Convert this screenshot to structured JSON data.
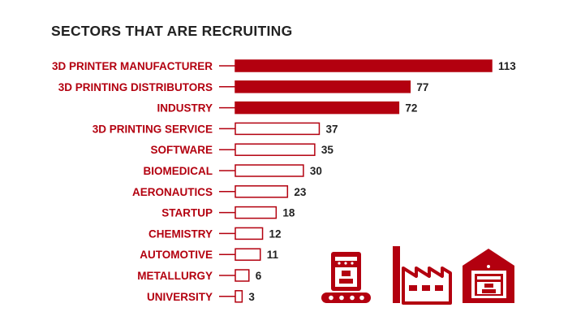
{
  "colors": {
    "accent": "#b3000f",
    "text": "#222222",
    "background": "#ffffff"
  },
  "icons": [
    "3d-printer-conveyor-icon",
    "factory-icon",
    "warehouse-3d-printer-icon"
  ],
  "chart_data": {
    "type": "bar",
    "orientation": "horizontal",
    "title": "SECTORS THAT ARE RECRUITING",
    "categories": [
      "3D PRINTER MANUFACTURER",
      "3D PRINTING DISTRIBUTORS",
      "INDUSTRY",
      "3D PRINTING SERVICE",
      "SOFTWARE",
      "BIOMEDICAL",
      "AERONAUTICS",
      "STARTUP",
      "CHEMISTRY",
      "AUTOMOTIVE",
      "METALLURGY",
      "UNIVERSITY"
    ],
    "values": [
      113,
      77,
      72,
      37,
      35,
      30,
      23,
      18,
      12,
      11,
      6,
      3
    ],
    "highlighted_top": 3,
    "xlim": [
      0,
      113
    ],
    "grid": false,
    "legend": "none"
  }
}
